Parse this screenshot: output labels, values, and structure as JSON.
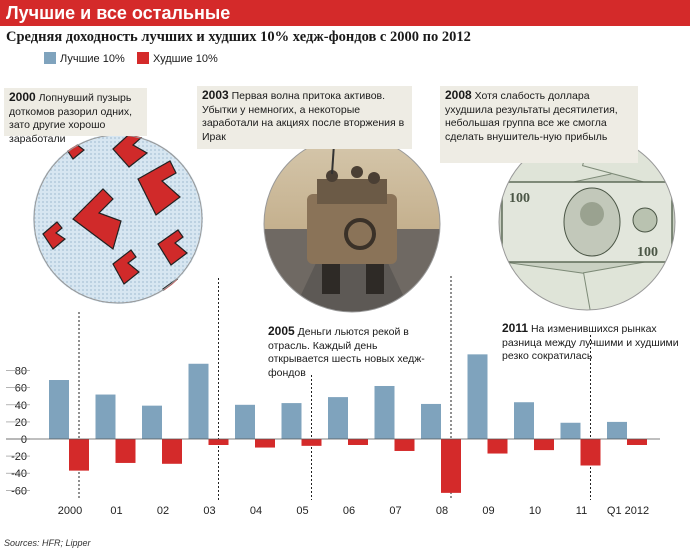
{
  "header": {
    "title": "Лучшие и все остальные",
    "subtitle": "Средняя доходность лучших и худших 10% хедж-фондов с 2000 по 2012"
  },
  "legend": [
    {
      "label": "Лучшие 10%",
      "color": "#7fa3bd"
    },
    {
      "label": "Худшие 10%",
      "color": "#d42a2a"
    }
  ],
  "annotations": [
    {
      "year": "2000",
      "text": "Лопнувший пузырь доткомов разорил одних, зато другие хорошо заработали"
    },
    {
      "year": "2003",
      "text": "Первая волна притока активов. Убытки у немногих, а некоторые заработали на акциях после вторжения в Ирак"
    },
    {
      "year": "2008",
      "text": "Хотя слабость доллара ухудшила результаты десятилетия, небольшая группа все же смогла сделать внушитель-ную прибыль"
    },
    {
      "year": "2005",
      "text": "Деньги льются рекой в отрасль. Каждый день открывается шесть новых хедж-фондов"
    },
    {
      "year": "2011",
      "text": "На изменившихся рынках разница между лучшими и худшими резко сократилась"
    }
  ],
  "sources": "Sources: HFR; Lipper",
  "chart_data": {
    "type": "bar",
    "categories": [
      "2000",
      "01",
      "02",
      "03",
      "04",
      "05",
      "06",
      "07",
      "08",
      "09",
      "10",
      "11",
      "Q1 2012"
    ],
    "series": [
      {
        "name": "Лучшие 10%",
        "color": "#7fa3bd",
        "values": [
          69,
          52,
          39,
          88,
          40,
          42,
          49,
          62,
          41,
          99,
          43,
          19,
          20
        ]
      },
      {
        "name": "Худшие 10%",
        "color": "#d42a2a",
        "values": [
          -37,
          -28,
          -29,
          -7,
          -10,
          -8,
          -7,
          -14,
          -63,
          -17,
          -13,
          -31,
          -7
        ]
      }
    ],
    "yticks": [
      80,
      60,
      40,
      20,
      0,
      -20,
      -40,
      -60
    ],
    "ylim": [
      -63,
      100
    ],
    "grid": false,
    "legend_position": "top-left"
  }
}
